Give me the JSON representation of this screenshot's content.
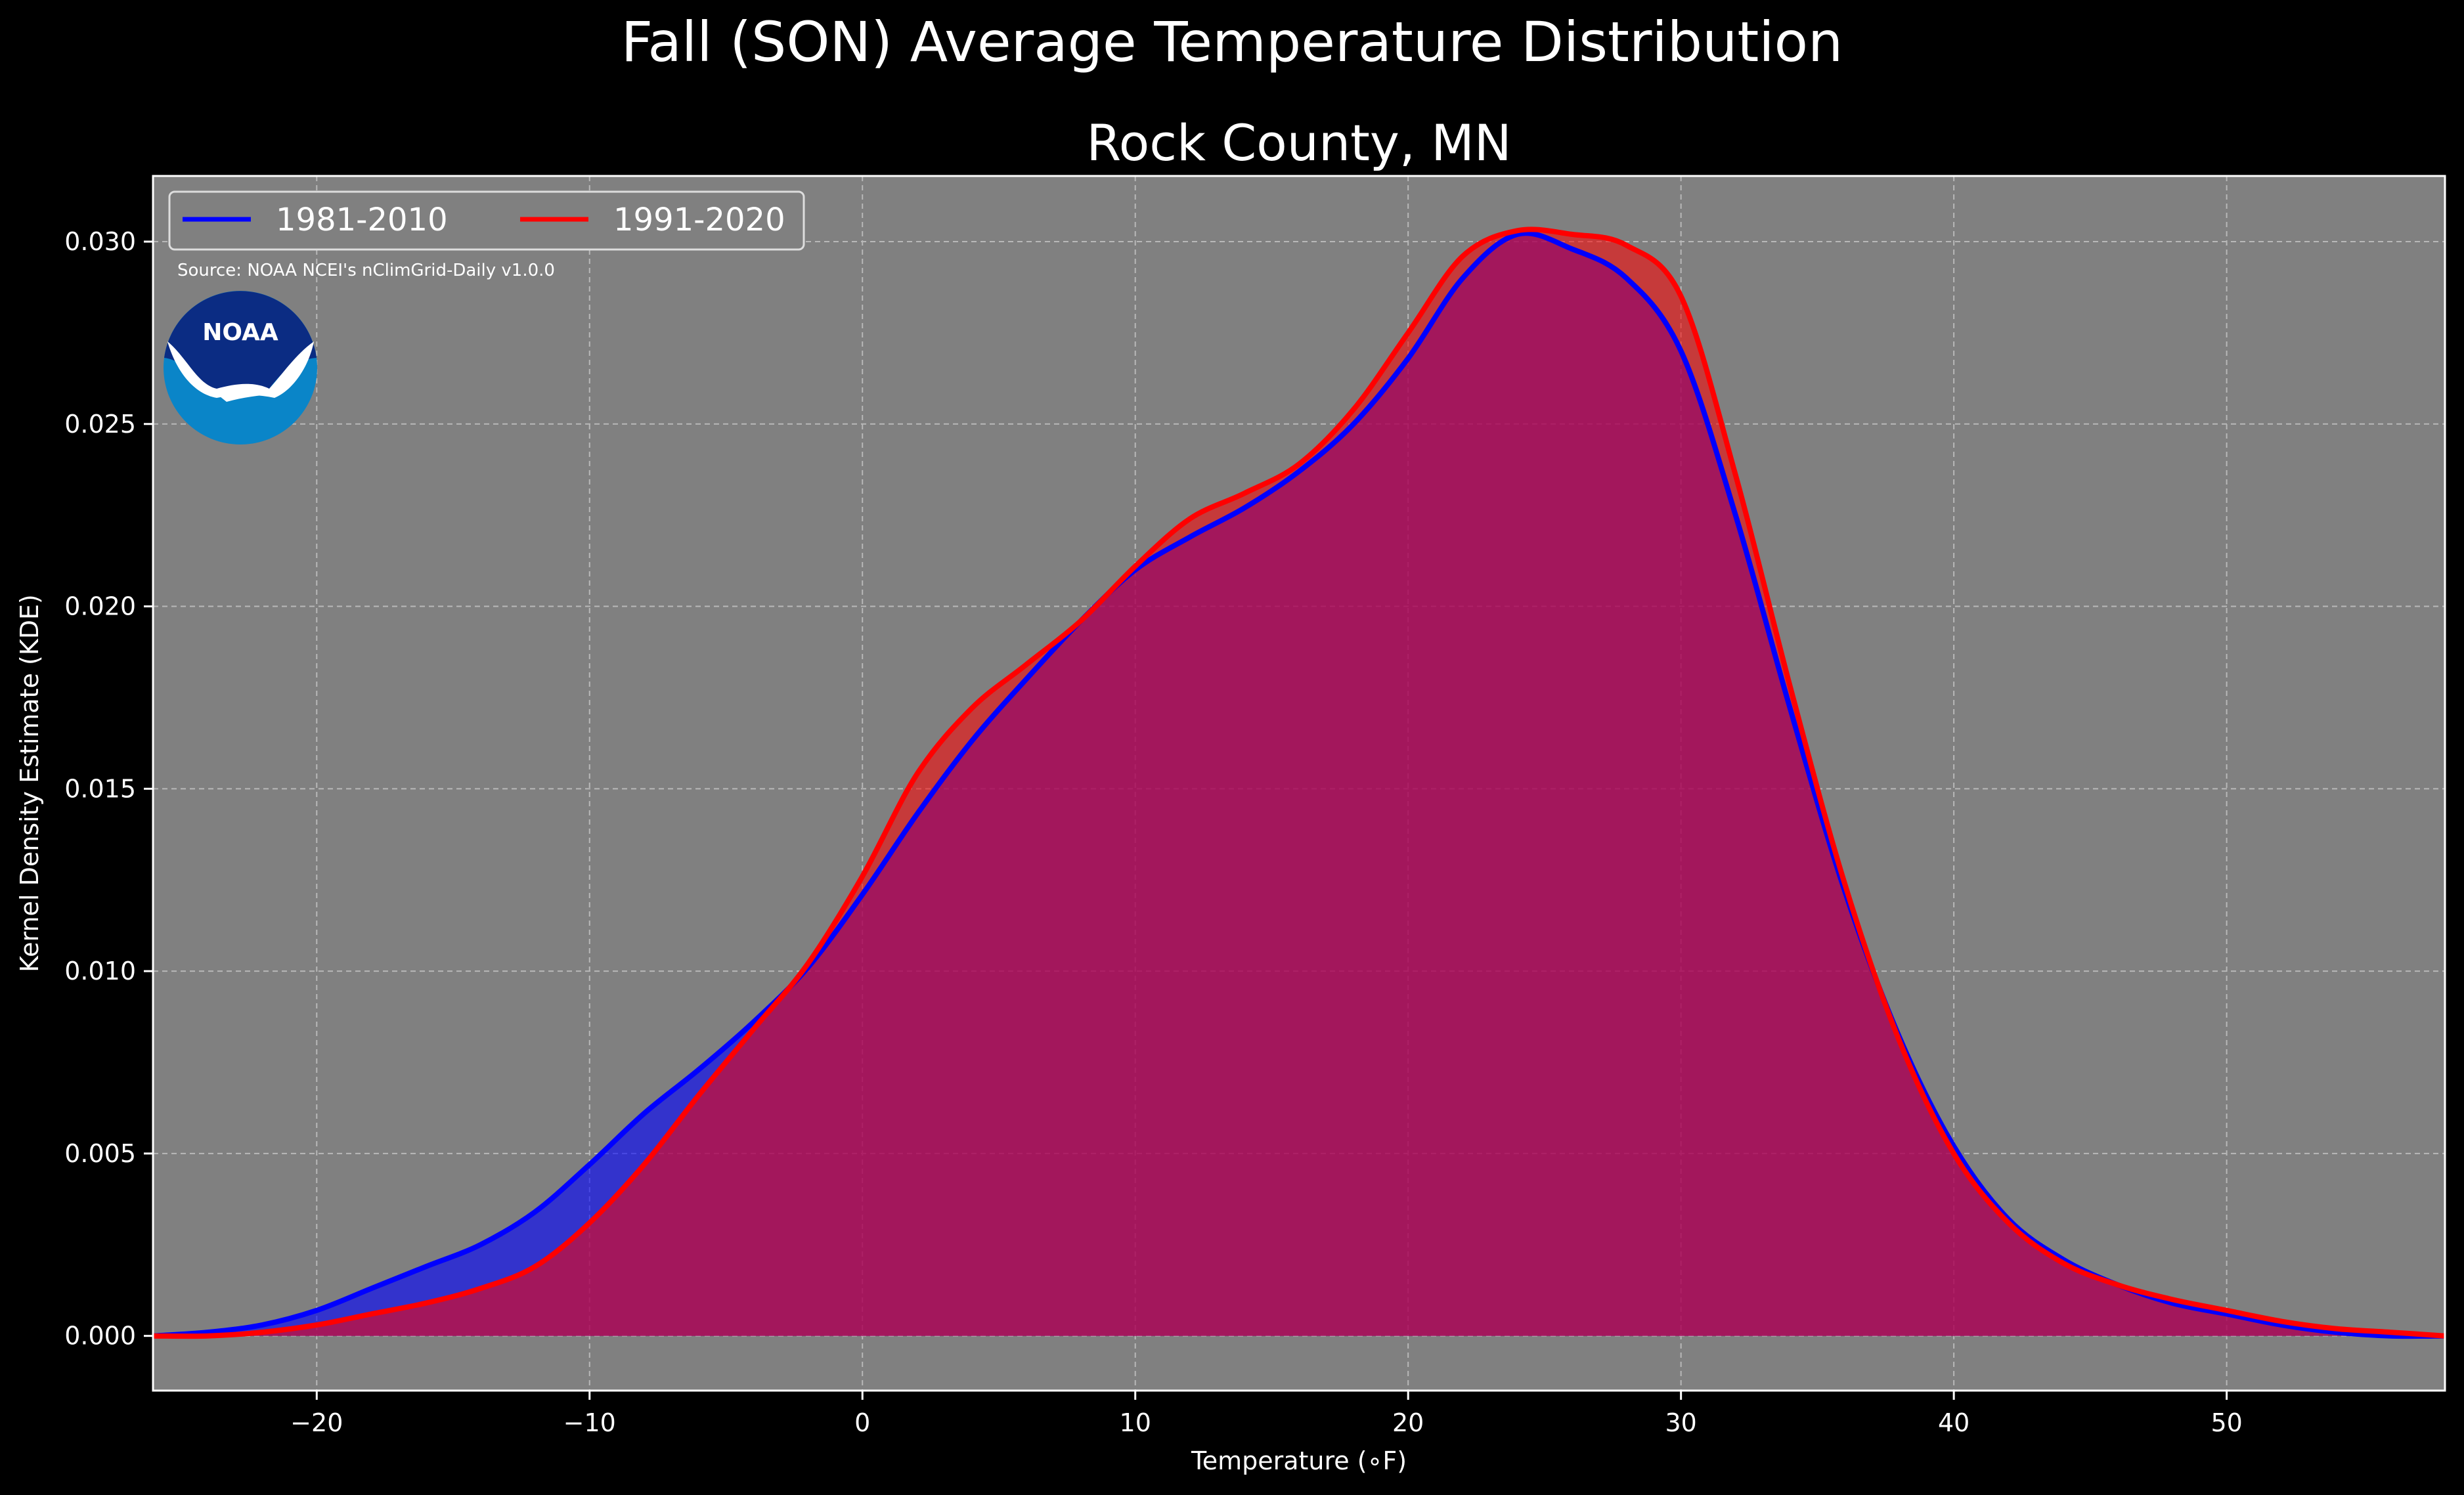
{
  "title": "Fall (SON) Average Temperature Distribution",
  "subtitle": "Rock County, MN",
  "source_note": "Source: NOAA NCEI's nClimGrid-Daily v1.0.0",
  "logo": {
    "text": "NOAA",
    "icon": "noaa-logo"
  },
  "colors": {
    "background": "#000000",
    "plot_bg": "#808080",
    "series_1981": "#0000ff",
    "series_1991": "#ff0000",
    "fill_overlap": "#9c1f5e"
  },
  "chart_data": {
    "type": "area",
    "title": "Rock County, MN",
    "xlabel": "Temperature (∘F)",
    "ylabel": "Kernel Density Estimate (KDE)",
    "xlim": [
      -26,
      58
    ],
    "ylim": [
      -0.0015,
      0.0318
    ],
    "xticks": [
      -20,
      -10,
      0,
      10,
      20,
      30,
      40,
      50
    ],
    "xtick_labels": [
      "−20",
      "−10",
      "0",
      "10",
      "20",
      "30",
      "40",
      "50"
    ],
    "yticks": [
      0.0,
      0.005,
      0.01,
      0.015,
      0.02,
      0.025,
      0.03
    ],
    "ytick_labels": [
      "0.000",
      "0.005",
      "0.010",
      "0.015",
      "0.020",
      "0.025",
      "0.030"
    ],
    "grid": true,
    "legend_placement": "top-left",
    "x": [
      -26,
      -24,
      -22,
      -20,
      -18,
      -16,
      -14,
      -12,
      -10,
      -8,
      -6,
      -4,
      -2,
      0,
      2,
      4,
      6,
      8,
      10,
      12,
      14,
      16,
      18,
      20,
      22,
      24,
      26,
      28,
      30,
      32,
      34,
      36,
      38,
      40,
      42,
      44,
      46,
      48,
      50,
      52,
      54,
      56,
      58
    ],
    "series": [
      {
        "name": "1981-2010",
        "values": [
          0.0,
          0.0001,
          0.0003,
          0.0007,
          0.0013,
          0.0019,
          0.0025,
          0.0034,
          0.0047,
          0.0061,
          0.0073,
          0.0086,
          0.0101,
          0.0121,
          0.0143,
          0.0163,
          0.018,
          0.0196,
          0.021,
          0.0219,
          0.0227,
          0.0237,
          0.025,
          0.0268,
          0.029,
          0.0302,
          0.0298,
          0.029,
          0.027,
          0.0225,
          0.0172,
          0.0122,
          0.0082,
          0.0052,
          0.0032,
          0.0021,
          0.0014,
          0.0009,
          0.0006,
          0.0003,
          0.0001,
          0.0,
          0.0
        ]
      },
      {
        "name": "1991-2020",
        "values": [
          0.0,
          0.0,
          0.0001,
          0.0003,
          0.0006,
          0.0009,
          0.0013,
          0.0019,
          0.0031,
          0.0047,
          0.0066,
          0.0084,
          0.0102,
          0.0126,
          0.0154,
          0.0172,
          0.0184,
          0.0196,
          0.0211,
          0.0224,
          0.0231,
          0.0239,
          0.0254,
          0.0275,
          0.0296,
          0.0303,
          0.0302,
          0.0299,
          0.0285,
          0.0236,
          0.0178,
          0.0124,
          0.0081,
          0.005,
          0.0031,
          0.002,
          0.0014,
          0.001,
          0.0007,
          0.0004,
          0.0002,
          0.0001,
          0.0
        ]
      }
    ]
  }
}
